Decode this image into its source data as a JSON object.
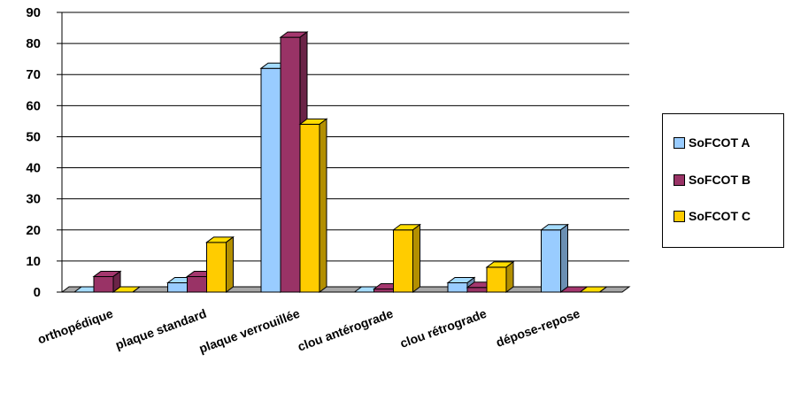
{
  "chart_data": {
    "type": "bar",
    "categories": [
      "orthopédique",
      "plaque standard",
      "plaque verrouillée",
      "clou antérograde",
      "clou rétrograde",
      "dépose-repose"
    ],
    "series": [
      {
        "name": "SoFCOT A",
        "color": "#99CCFF",
        "values": [
          0,
          3,
          72,
          0,
          3,
          20
        ]
      },
      {
        "name": "SoFCOT B",
        "color": "#993366",
        "values": [
          5,
          5,
          82,
          1,
          1.5,
          0
        ]
      },
      {
        "name": "SoFCOT C",
        "color": "#FFCC00",
        "values": [
          0,
          16,
          54,
          20,
          8,
          0
        ]
      }
    ],
    "yticks": [
      "0",
      "10",
      "20",
      "30",
      "40",
      "50",
      "60",
      "70",
      "80",
      "90"
    ],
    "ylim": [
      0,
      90
    ],
    "grid": true,
    "legend_position": "right",
    "style": "3d-bar"
  }
}
